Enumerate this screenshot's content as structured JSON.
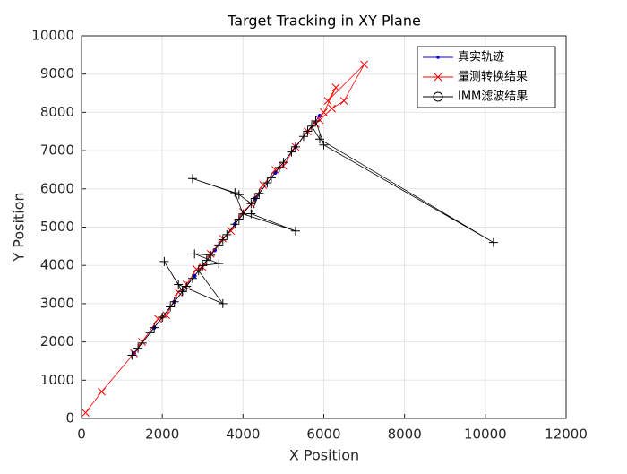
{
  "chart_data": {
    "type": "line",
    "title": "Target Tracking in XY Plane",
    "x_label": "X Position",
    "y_label": "Y Position",
    "xlim": [
      0,
      12000
    ],
    "xticks": [
      0,
      2000,
      4000,
      6000,
      8000,
      10000,
      12000
    ],
    "ylim": [
      0,
      10000
    ],
    "yticks": [
      0,
      1000,
      2000,
      3000,
      4000,
      5000,
      6000,
      7000,
      8000,
      9000,
      10000
    ],
    "grid": true,
    "legend": "northeast",
    "series": [
      {
        "name": "真实轨迹",
        "color": "#0000ff",
        "marker": ".",
        "x": [
          1300,
          1800,
          2300,
          2800,
          3300,
          3800,
          4300,
          4800,
          5300,
          5900
        ],
        "values": [
          1700,
          2375,
          3050,
          3725,
          4400,
          5075,
          5750,
          6425,
          7100,
          7910
        ]
      },
      {
        "name": "量测转换结果",
        "color": "#ff0000",
        "marker": "x",
        "x": [
          100,
          500,
          1300,
          1500,
          1900,
          2100,
          2400,
          2600,
          2850,
          3000,
          3200,
          3500,
          3700,
          4000,
          4200,
          4500,
          4800,
          5000,
          5300,
          5600,
          5800,
          6000,
          6300,
          6100,
          7000,
          6500,
          6200,
          5900
        ],
        "values": [
          150,
          700,
          1700,
          2000,
          2600,
          2700,
          3300,
          3500,
          3900,
          3950,
          4300,
          4700,
          4900,
          5400,
          5600,
          6100,
          6500,
          6600,
          7100,
          7500,
          7700,
          8000,
          8650,
          8300,
          9250,
          8300,
          8100,
          7800
        ]
      },
      {
        "name": "IMM滤波结果",
        "color": "#000000",
        "marker": "+",
        "legend_marker": "o",
        "x": [
          1250,
          1400,
          1700,
          2000,
          2200,
          2500,
          2750,
          3100,
          3400,
          3600,
          3900,
          4300,
          4600,
          4900,
          5200,
          5500,
          5700,
          5900,
          10200,
          6000,
          5800,
          5600,
          5300,
          5000,
          4700,
          4400,
          4200,
          5300,
          4000,
          3800,
          2750,
          3900,
          4200,
          3800,
          3500,
          3200,
          2800,
          3400,
          3000,
          2500,
          2050,
          2400,
          3500,
          2900,
          2600,
          2300,
          2000,
          1800,
          1500
        ],
        "values": [
          1650,
          1835,
          2240,
          2645,
          2915,
          3320,
          3660,
          4130,
          4535,
          4805,
          5210,
          5750,
          6155,
          6560,
          6965,
          7370,
          7640,
          7300,
          4600,
          7150,
          7775,
          7505,
          7100,
          6695,
          6290,
          5885,
          5350,
          4900,
          5345,
          5900,
          6270,
          5850,
          5615,
          5075,
          4670,
          4265,
          4300,
          4050,
          3995,
          3320,
          4100,
          3500,
          3000,
          3860,
          3455,
          3050,
          2645,
          2375,
          1970
        ]
      }
    ]
  }
}
